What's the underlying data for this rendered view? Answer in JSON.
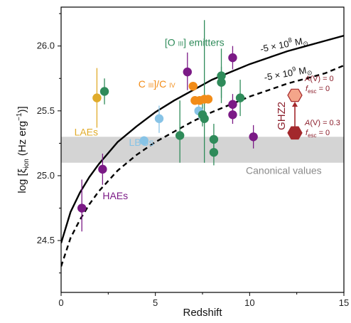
{
  "chart_data": {
    "type": "scatter",
    "xlabel": "Redshift",
    "ylabel_parts": {
      "main": "log [ξ",
      "sub": "ion",
      "unit": " (Hz erg",
      "sup": "−1",
      "end": ")]"
    },
    "xlim": [
      0,
      15
    ],
    "ylim": [
      24.1,
      26.3
    ],
    "xticks": [
      0,
      5,
      10,
      15
    ],
    "yticks": [
      24.5,
      25.0,
      25.5,
      26.0
    ],
    "xtick_labels": [
      "0",
      "5",
      "10",
      "15"
    ],
    "ytick_labels": [
      "24.5",
      "25.0",
      "25.5",
      "26.0"
    ],
    "band": {
      "y_low": 25.1,
      "y_high": 25.3,
      "label": "Canonical values",
      "color": "#d4d4d4"
    },
    "curves": [
      {
        "name": "solid",
        "label_main": "-5 × 10",
        "label_sup": "8",
        "label_unit": " M",
        "label_sub": "⊙",
        "style": "solid",
        "points": [
          [
            0,
            24.48
          ],
          [
            0.5,
            24.72
          ],
          [
            1,
            24.87
          ],
          [
            1.5,
            24.99
          ],
          [
            2,
            25.09
          ],
          [
            3,
            25.26
          ],
          [
            4,
            25.38
          ],
          [
            5,
            25.49
          ],
          [
            6,
            25.58
          ],
          [
            7,
            25.66
          ],
          [
            8,
            25.74
          ],
          [
            9,
            25.8
          ],
          [
            10,
            25.86
          ],
          [
            11,
            25.91
          ],
          [
            12,
            25.96
          ],
          [
            13,
            26.0
          ],
          [
            14,
            26.04
          ],
          [
            15,
            26.08
          ]
        ]
      },
      {
        "name": "dashed",
        "label_main": "-5 × 10",
        "label_sup": "9",
        "label_unit": " M",
        "label_sub": "⊙",
        "style": "dashed",
        "points": [
          [
            0,
            24.3
          ],
          [
            0.5,
            24.52
          ],
          [
            1,
            24.66
          ],
          [
            1.5,
            24.78
          ],
          [
            2,
            24.88
          ],
          [
            3,
            25.04
          ],
          [
            4,
            25.16
          ],
          [
            5,
            25.26
          ],
          [
            6,
            25.34
          ],
          [
            7,
            25.42
          ],
          [
            8,
            25.49
          ],
          [
            9,
            25.55
          ],
          [
            10,
            25.61
          ],
          [
            11,
            25.66
          ],
          [
            12,
            25.71
          ],
          [
            13,
            25.75
          ],
          [
            14,
            25.79
          ],
          [
            15,
            25.85
          ]
        ]
      }
    ],
    "series": [
      {
        "name": "HAEs",
        "color": "#7b1a86",
        "label_x": 2.2,
        "label_y": 24.82,
        "points": [
          {
            "x": 1.1,
            "y": 24.75,
            "lo": 24.57,
            "hi": 24.97
          },
          {
            "x": 2.2,
            "y": 25.05,
            "lo": 24.93,
            "hi": 25.17
          },
          {
            "x": 6.7,
            "y": 25.8,
            "lo": 25.66,
            "hi": 25.95
          },
          {
            "x": 9.1,
            "y": 25.91,
            "lo": 25.82,
            "hi": 26.0
          },
          {
            "x": 9.1,
            "y": 25.55,
            "lo": 25.47,
            "hi": 25.63
          },
          {
            "x": 9.1,
            "y": 25.47,
            "lo": 25.4,
            "hi": 25.55
          },
          {
            "x": 10.2,
            "y": 25.3,
            "lo": 25.21,
            "hi": 25.39
          }
        ]
      },
      {
        "name": "LAEs",
        "color": "#e0ab2a",
        "label_x": 0.7,
        "label_y": 25.31,
        "points": [
          {
            "x": 1.9,
            "y": 25.6,
            "lo": 25.37,
            "hi": 25.83
          }
        ]
      },
      {
        "name": "LBGs",
        "color": "#87c3e6",
        "label_x": 3.6,
        "label_y": 25.23,
        "points": [
          {
            "x": 4.4,
            "y": 25.27,
            "lo": 25.27,
            "hi": 25.27
          },
          {
            "x": 5.2,
            "y": 25.44,
            "lo": 25.33,
            "hi": 25.54
          },
          {
            "x": 7.3,
            "y": 25.5,
            "lo": 25.44,
            "hi": 25.56
          }
        ]
      },
      {
        "name": "[O III] emitters",
        "label_main": "[O ",
        "label_roman": "III",
        "label_tail": "] emitters",
        "color": "#2f8b5a",
        "label_x": 5.5,
        "label_y": 26.0,
        "points": [
          {
            "x": 2.3,
            "y": 25.65,
            "lo": 25.55,
            "hi": 25.75
          },
          {
            "x": 6.3,
            "y": 25.31,
            "lo": 25.1,
            "hi": 25.58
          },
          {
            "x": 7.5,
            "y": 25.47,
            "lo": 25.38,
            "hi": 25.56
          },
          {
            "x": 8.1,
            "y": 25.28,
            "lo": 25.17,
            "hi": 25.4
          },
          {
            "x": 8.1,
            "y": 25.18,
            "lo": 25.08,
            "hi": 25.28
          },
          {
            "x": 8.5,
            "y": 25.77,
            "lo": 25.56,
            "hi": 25.98
          },
          {
            "x": 8.5,
            "y": 25.72,
            "lo": 25.6,
            "hi": 25.84
          },
          {
            "x": 9.5,
            "y": 25.6,
            "lo": 25.46,
            "hi": 25.74
          },
          {
            "x": 7.6,
            "y": 25.44,
            "lo": 25.1,
            "hi": 26.2
          }
        ]
      },
      {
        "name": "C III]/C IV",
        "label_main": "C ",
        "label_roman1": "III",
        "label_mid": "]/C ",
        "label_roman2": "IV",
        "color": "#f28c18",
        "label_x": 4.1,
        "label_y": 25.68,
        "points": [
          {
            "x": 7.0,
            "y": 25.69,
            "lo": 25.69,
            "hi": 25.69
          },
          {
            "x": 7.1,
            "y": 25.58,
            "lo": 25.58,
            "hi": 25.58
          },
          {
            "x": 7.35,
            "y": 25.58,
            "lo": 25.58,
            "hi": 25.58
          },
          {
            "x": 7.6,
            "y": 25.59,
            "lo": 25.59,
            "hi": 25.59
          },
          {
            "x": 7.8,
            "y": 25.59,
            "lo": 25.59,
            "hi": 25.59
          }
        ]
      }
    ],
    "ghz2": {
      "label": "GHZ2",
      "x": 12.4,
      "y_high": 25.62,
      "y_low": 25.33,
      "high_color": "#f4a58a",
      "low_color": "#a3282c",
      "ann_high": {
        "a": "A",
        "main": "(V) = 0",
        "f": "f",
        "sub": "esc",
        "eq": " = 0"
      },
      "ann_low": {
        "a": "A",
        "main": "(V) = 0.3",
        "f": "f",
        "sub": "esc",
        "eq": " = 0"
      }
    }
  }
}
